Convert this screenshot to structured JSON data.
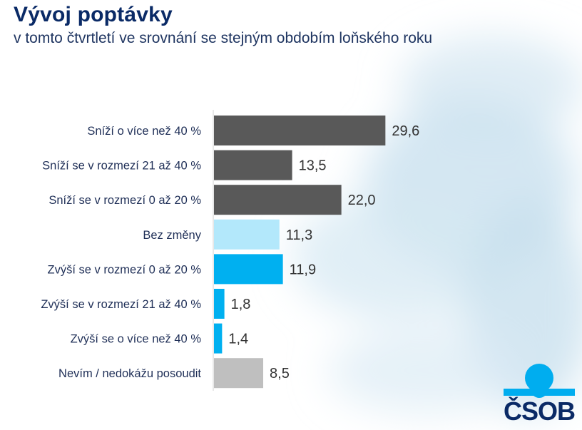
{
  "header": {
    "title": "Vývoj poptávky",
    "subtitle": "v tomto čtvrtletí ve srovnání se stejným obdobím loňského roku"
  },
  "brand": {
    "logo_text": "ČSOB",
    "logo_color": "#0a2a66",
    "accent": "#00adef"
  },
  "chart_data": {
    "type": "bar",
    "orientation": "horizontal",
    "title": "Vývoj poptávky",
    "subtitle": "v tomto čtvrtletí ve srovnání se stejným obdobím loňského roku",
    "xlabel": "",
    "ylabel": "",
    "xlim": [
      0,
      30
    ],
    "grid": false,
    "legend": "none",
    "categories": [
      "Sníží o více než 40 %",
      "Sníží se v rozmezí 21 až 40 %",
      "Sníží se v rozmezí 0 až 20 %",
      "Bez změny",
      "Zvýší se v rozmezí 0 až 20 %",
      "Zvýší se v rozmezí 21 až 40 %",
      "Zvýší se o více než 40 %",
      "Nevím / nedokážu posoudit"
    ],
    "values": [
      29.6,
      13.5,
      22.0,
      11.3,
      11.9,
      1.8,
      1.4,
      8.5
    ],
    "value_labels": [
      "29,6",
      "13,5",
      "22,0",
      "11,3",
      "11,9",
      "1,8",
      "1,4",
      "8,5"
    ],
    "colors": [
      "#595959",
      "#595959",
      "#595959",
      "#b3e8fb",
      "#00b0f0",
      "#00b0f0",
      "#00b0f0",
      "#bfbfbf"
    ]
  }
}
